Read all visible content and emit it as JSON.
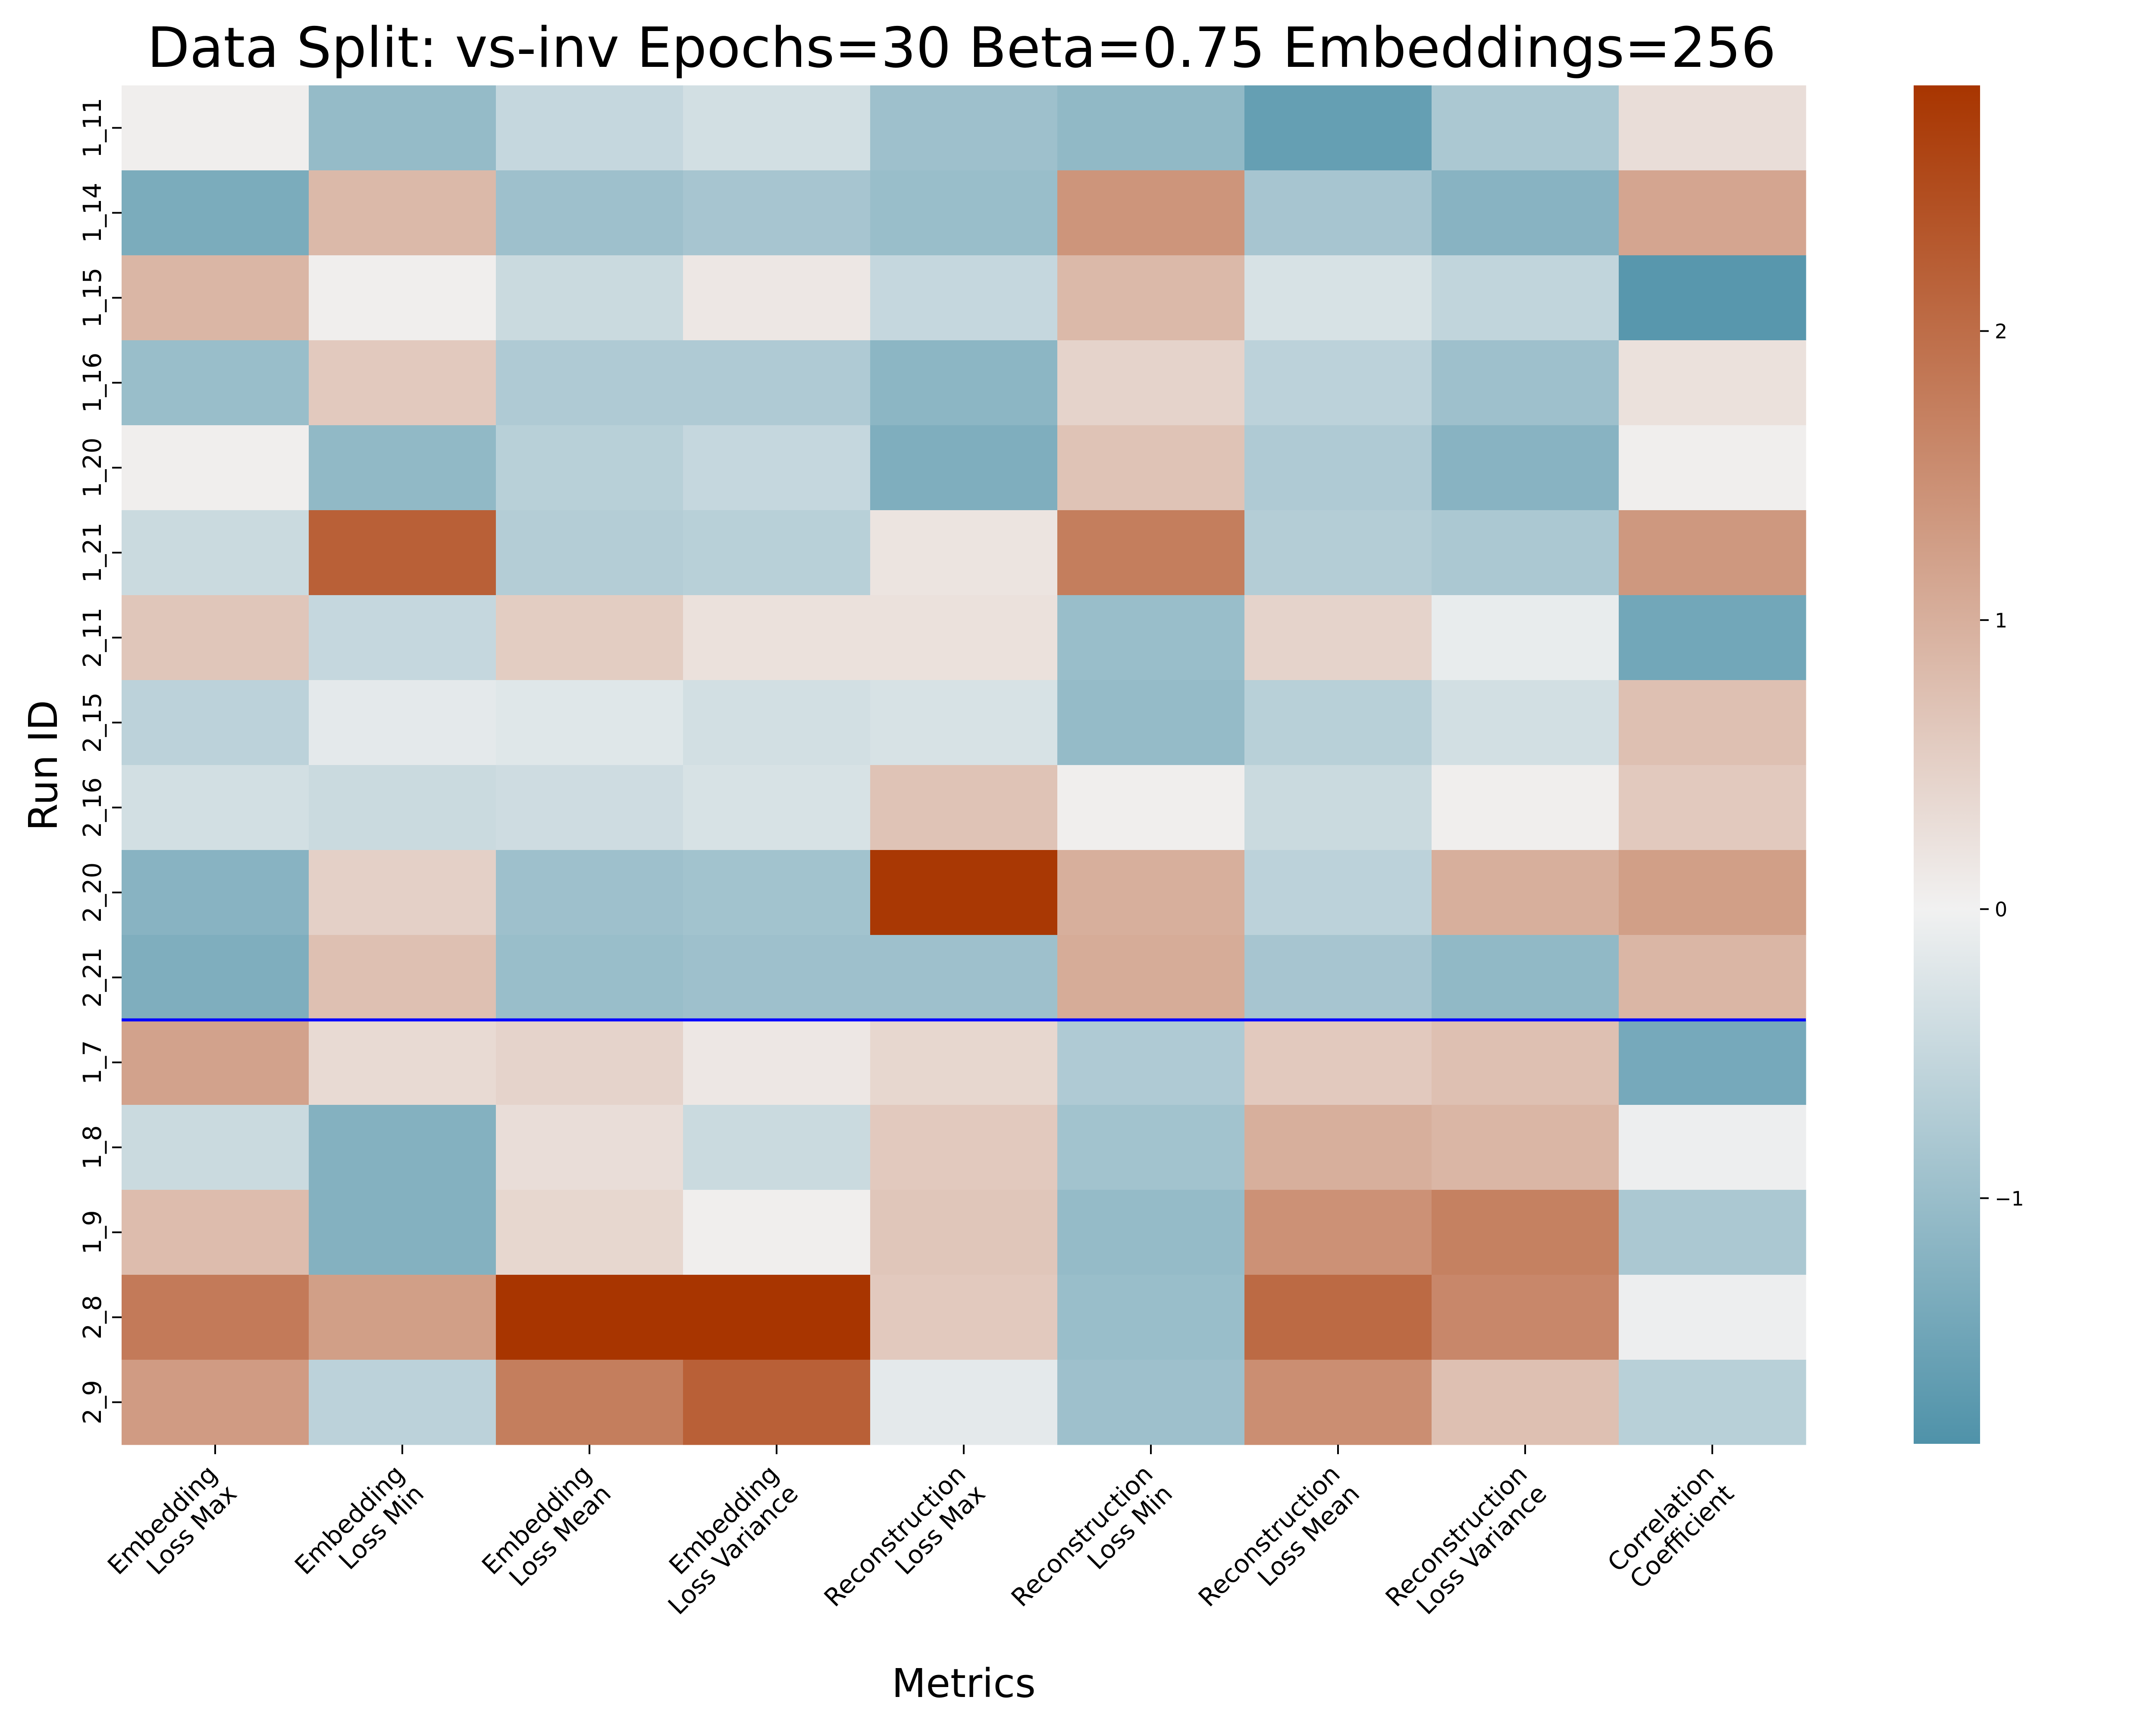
{
  "chart_data": {
    "type": "heatmap",
    "title": "Data Split: vs-inv Epochs=30 Beta=0.75 Embeddings=256",
    "xlabel": "Metrics",
    "ylabel": "Run ID",
    "columns": [
      [
        "Embedding",
        "Loss Max"
      ],
      [
        "Embedding",
        "Loss Min"
      ],
      [
        "Embedding",
        "Loss Mean"
      ],
      [
        "Embedding",
        "Loss Variance"
      ],
      [
        "Reconstruction",
        "Loss Max"
      ],
      [
        "Reconstruction",
        "Loss Min"
      ],
      [
        "Reconstruction",
        "Loss Mean"
      ],
      [
        "Reconstruction",
        "Loss Variance"
      ],
      [
        "Correlation",
        "Coefficient"
      ]
    ],
    "rows": [
      "1_11",
      "1_14",
      "1_15",
      "1_16",
      "1_20",
      "1_21",
      "2_11",
      "2_15",
      "2_16",
      "2_20",
      "2_21",
      "1_7",
      "1_8",
      "1_9",
      "2_8",
      "2_9"
    ],
    "values": [
      [
        0.05,
        -1.05,
        -0.5,
        -0.35,
        -0.95,
        -1.1,
        -1.6,
        -0.8,
        0.3
      ],
      [
        -1.35,
        0.85,
        -0.95,
        -0.85,
        -1.0,
        1.4,
        -0.85,
        -1.2,
        1.15
      ],
      [
        0.9,
        0.05,
        -0.45,
        0.15,
        -0.5,
        0.85,
        -0.3,
        -0.55,
        -1.75
      ],
      [
        -1.0,
        0.6,
        -0.75,
        -0.75,
        -1.15,
        0.45,
        -0.6,
        -0.95,
        0.25
      ],
      [
        0.05,
        -1.1,
        -0.65,
        -0.5,
        -1.3,
        0.7,
        -0.75,
        -1.2,
        0.05
      ],
      [
        -0.45,
        2.2,
        -0.7,
        -0.65,
        0.2,
        1.75,
        -0.7,
        -0.8,
        1.35
      ],
      [
        0.65,
        -0.5,
        0.55,
        0.25,
        0.25,
        -1.0,
        0.45,
        -0.1,
        -1.45
      ],
      [
        -0.6,
        -0.15,
        -0.2,
        -0.35,
        -0.3,
        -1.05,
        -0.65,
        -0.35,
        0.75
      ],
      [
        -0.35,
        -0.45,
        -0.4,
        -0.3,
        0.7,
        0.05,
        -0.45,
        0.05,
        0.6
      ],
      [
        -1.2,
        0.5,
        -0.95,
        -0.9,
        2.8,
        1.0,
        -0.6,
        1.0,
        1.25
      ],
      [
        -1.3,
        0.75,
        -1.0,
        -0.95,
        -0.95,
        1.05,
        -0.85,
        -1.1,
        0.9
      ],
      [
        1.2,
        0.35,
        0.45,
        0.15,
        0.4,
        -0.75,
        0.6,
        0.75,
        -1.4
      ],
      [
        -0.45,
        -1.25,
        0.3,
        -0.45,
        0.6,
        -0.9,
        1.0,
        0.9,
        -0.05
      ],
      [
        0.8,
        -1.25,
        0.4,
        0.05,
        0.65,
        -1.05,
        1.45,
        1.7,
        -0.8
      ],
      [
        1.8,
        1.25,
        2.85,
        2.85,
        0.6,
        -1.0,
        2.05,
        1.6,
        -0.05
      ],
      [
        1.3,
        -0.6,
        1.75,
        2.2,
        -0.15,
        -0.95,
        1.5,
        0.75,
        -0.65
      ]
    ],
    "vmin": -1.85,
    "vmax": 2.85,
    "colorbar_ticks": [
      -1,
      0,
      1,
      2
    ],
    "colorbar_tick_labels": [
      "−1",
      "0",
      "1",
      "2"
    ],
    "separator_after_row": 11,
    "separator_color": "#0000ff",
    "colormap": {
      "low": "#4f92a9",
      "mid": "#f1f1f1",
      "high": "#a83500"
    },
    "grid": false,
    "legend": "colorbar-right"
  }
}
